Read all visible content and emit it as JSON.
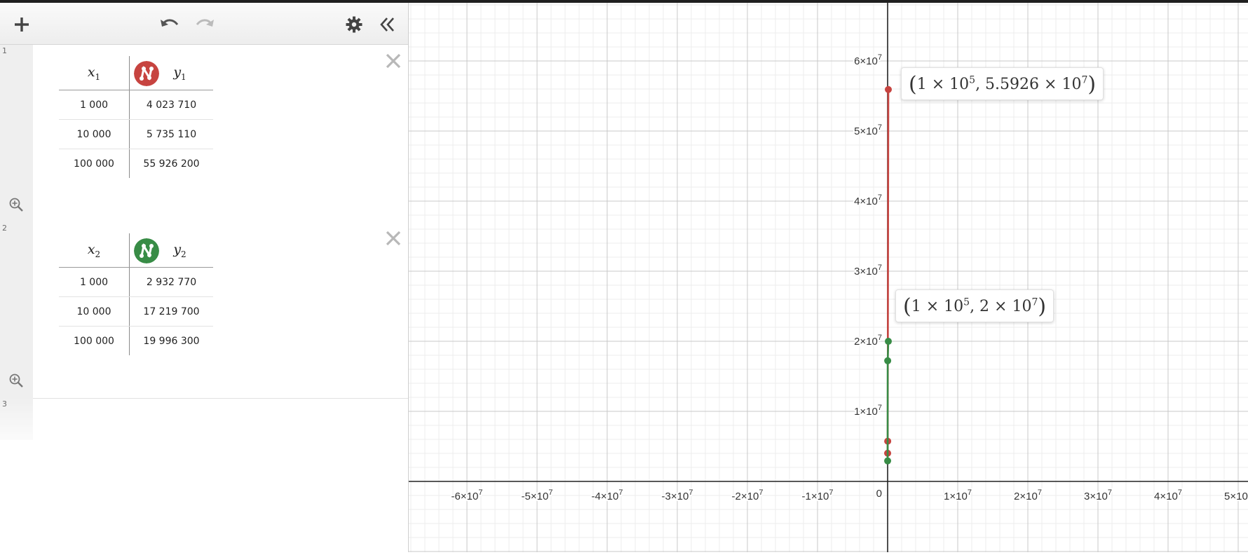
{
  "toolbar": {
    "add_icon": "plus-icon",
    "undo_icon": "undo-icon",
    "redo_icon": "redo-icon",
    "settings_icon": "gear-icon",
    "collapse_icon": "double-chevron-left-icon"
  },
  "expressions": [
    {
      "index": "1",
      "color": "#c74440",
      "x_header": "x",
      "x_sub": "1",
      "y_header": "y",
      "y_sub": "1",
      "rows": [
        {
          "x": "1 000",
          "y": "4 023 710"
        },
        {
          "x": "10 000",
          "y": "5 735 110"
        },
        {
          "x": "100 000",
          "y": "55 926 200"
        }
      ]
    },
    {
      "index": "2",
      "color": "#388c46",
      "x_header": "x",
      "x_sub": "2",
      "y_header": "y",
      "y_sub": "2",
      "rows": [
        {
          "x": "1 000",
          "y": "2 932 770"
        },
        {
          "x": "10 000",
          "y": "17 219 700"
        },
        {
          "x": "100 000",
          "y": "19 996 300"
        }
      ]
    },
    {
      "index": "3"
    }
  ],
  "chart_data": {
    "type": "line",
    "x_ticks": [
      "-6",
      "-5",
      "-4",
      "-3",
      "-2",
      "-1",
      "0",
      "1",
      "2",
      "3",
      "4",
      "5"
    ],
    "y_ticks": [
      "1",
      "2",
      "3",
      "4",
      "5",
      "6"
    ],
    "tick_base": "×10",
    "tick_exp": "7",
    "grid": true,
    "series": [
      {
        "color": "#c74440",
        "x": [
          1000,
          10000,
          100000
        ],
        "y": [
          4023710,
          5735110,
          55926200
        ]
      },
      {
        "color": "#388c46",
        "x": [
          1000,
          10000,
          100000
        ],
        "y": [
          2932770,
          17219700,
          19996300
        ]
      }
    ],
    "labels": [
      {
        "mant": "1 × 10",
        "exp": "5",
        "rest": ", 5.5926 × 10",
        "exp2": "7"
      },
      {
        "mant": "1 × 10",
        "exp": "5",
        "rest": ", 2 × 10",
        "exp2": "7"
      }
    ]
  }
}
